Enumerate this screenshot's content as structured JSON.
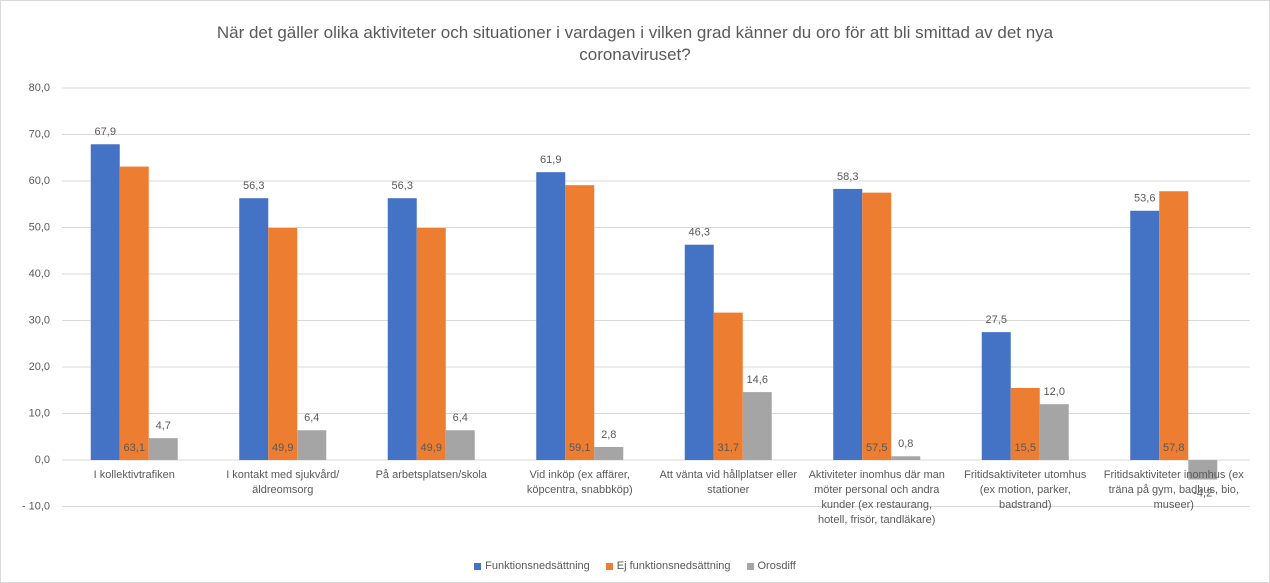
{
  "chart_data": {
    "type": "bar",
    "title": "När det gäller olika aktiviteter och situationer i vardagen i vilken grad känner du oro för att bli smittad av det nya coronaviruset?",
    "categories": [
      "I kollektivtrafiken",
      "I kontakt med sjukvård/äldreomsorg",
      "På arbetsplatsen/skola",
      "Vid inköp (ex affärer, köpcentra, snabbköp)",
      "Att vänta vid hållplatser eller stationer",
      "Aktiviteter inomhus där man möter personal och andra kunder (ex restaurang, hotell, frisör, tandläkare)",
      "Fritidsaktiviteter utomhus (ex motion, parker, badstrand)",
      "Fritidsaktiviteter inomhus (ex träna på gym, badhus, bio, museer)"
    ],
    "series": [
      {
        "name": "Funktionsnedsättning",
        "color": "#4472c4",
        "values": [
          67.9,
          56.3,
          56.3,
          61.9,
          46.3,
          58.3,
          27.5,
          53.6
        ],
        "value_labels": [
          "67,9",
          "56,3",
          "56,3",
          "61,9",
          "46,3",
          "58,3",
          "27,5",
          "53,6"
        ]
      },
      {
        "name": "Ej funktionsnedsättning",
        "color": "#ed7d31",
        "values": [
          63.1,
          49.9,
          49.9,
          59.1,
          31.7,
          57.5,
          15.5,
          57.8
        ],
        "value_labels": [
          "63,1",
          "49,9",
          "49,9",
          "59,1",
          "31,7",
          "57,5",
          "15,5",
          "57,8"
        ]
      },
      {
        "name": "Orosdiff",
        "color": "#a5a5a5",
        "values": [
          4.7,
          6.4,
          6.4,
          2.8,
          14.6,
          0.8,
          12.0,
          -4.2
        ],
        "value_labels": [
          "4,7",
          "6,4",
          "6,4",
          "2,8",
          "14,6",
          "0,8",
          "12,0",
          "-4,2"
        ]
      }
    ],
    "ylim": [
      -10,
      80
    ],
    "yticks": [
      {
        "value": -10,
        "label": "- 10,0"
      },
      {
        "value": 0,
        "label": "0,0"
      },
      {
        "value": 10,
        "label": "10,0"
      },
      {
        "value": 20,
        "label": "20,0"
      },
      {
        "value": 30,
        "label": "30,0"
      },
      {
        "value": 40,
        "label": "40,0"
      },
      {
        "value": 50,
        "label": "50,0"
      },
      {
        "value": 60,
        "label": "60,0"
      },
      {
        "value": 70,
        "label": "70,0"
      },
      {
        "value": 80,
        "label": "80,0"
      }
    ],
    "grid": true,
    "legend": "bottom"
  }
}
